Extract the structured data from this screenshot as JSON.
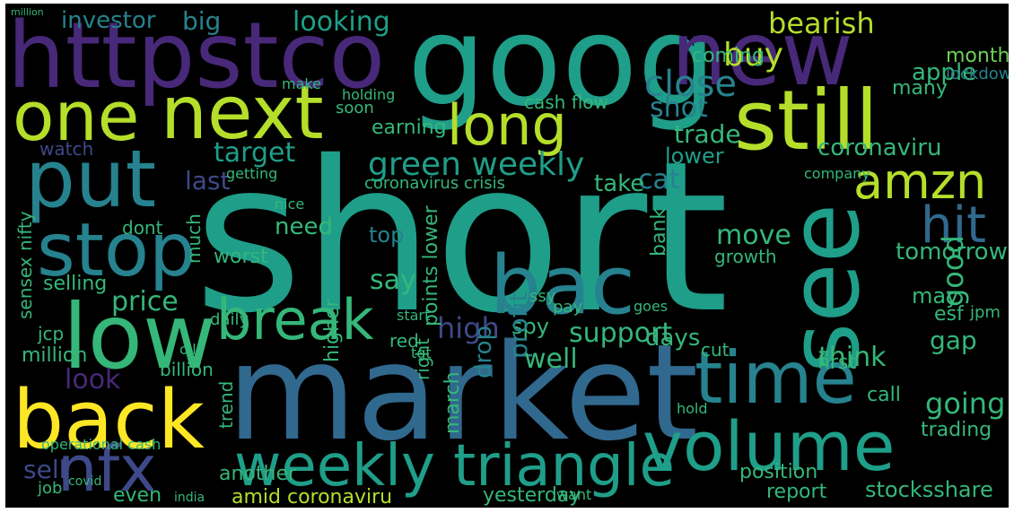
{
  "background": "#000000",
  "palette": {
    "yellow": "#fde725",
    "lime": "#b5de2b",
    "green": "#6ece58",
    "teal": "#35b779",
    "cyan": "#1f9e89",
    "blue": "#26828e",
    "steel": "#31688e",
    "indigo": "#3e4989",
    "purple": "#482878",
    "dark": "#440154"
  },
  "words": [
    {
      "text": "short",
      "color": "cyan"
    },
    {
      "text": "market",
      "color": "steel"
    },
    {
      "text": "goog",
      "color": "cyan"
    },
    {
      "text": "httpstco",
      "color": "purple"
    },
    {
      "text": "new",
      "color": "purple"
    },
    {
      "text": "one",
      "color": "lime"
    },
    {
      "text": "next",
      "color": "lime"
    },
    {
      "text": "long",
      "color": "lime"
    },
    {
      "text": "still",
      "color": "lime"
    },
    {
      "text": "put",
      "color": "blue"
    },
    {
      "text": "low",
      "color": "teal"
    },
    {
      "text": "back",
      "color": "yellow"
    },
    {
      "text": "stop",
      "color": "blue"
    },
    {
      "text": "see",
      "color": "cyan"
    },
    {
      "text": "bac",
      "color": "blue"
    },
    {
      "text": "time",
      "color": "blue"
    },
    {
      "text": "volume",
      "color": "cyan"
    },
    {
      "text": "weekly triangle",
      "color": "cyan"
    },
    {
      "text": "nfx",
      "color": "indigo"
    },
    {
      "text": "break",
      "color": "teal"
    },
    {
      "text": "amzn",
      "color": "lime"
    },
    {
      "text": "hit",
      "color": "steel"
    },
    {
      "text": "bearish",
      "color": "lime"
    },
    {
      "text": "green weekly",
      "color": "cyan"
    },
    {
      "text": "target",
      "color": "cyan"
    },
    {
      "text": "close",
      "color": "blue"
    },
    {
      "text": "shot",
      "color": "blue"
    },
    {
      "text": "buy",
      "color": "lime"
    },
    {
      "text": "coronaviru",
      "color": "teal"
    },
    {
      "text": "investor",
      "color": "blue"
    },
    {
      "text": "big",
      "color": "blue"
    },
    {
      "text": "looking",
      "color": "cyan"
    },
    {
      "text": "month",
      "color": "green"
    },
    {
      "text": "apple",
      "color": "teal"
    },
    {
      "text": "coming",
      "color": "teal"
    },
    {
      "text": "lockdown",
      "color": "blue"
    },
    {
      "text": "trade",
      "color": "teal"
    },
    {
      "text": "lower",
      "color": "cyan"
    },
    {
      "text": "earning",
      "color": "teal"
    },
    {
      "text": "cat",
      "color": "blue"
    },
    {
      "text": "watch",
      "color": "indigo"
    },
    {
      "text": "last",
      "color": "indigo"
    },
    {
      "text": "price",
      "color": "teal"
    },
    {
      "text": "sell",
      "color": "indigo"
    },
    {
      "text": "look",
      "color": "purple"
    },
    {
      "text": "high",
      "color": "indigo"
    },
    {
      "text": "spy",
      "color": "teal"
    },
    {
      "text": "support",
      "color": "teal"
    },
    {
      "text": "move",
      "color": "teal"
    },
    {
      "text": "growth",
      "color": "teal"
    },
    {
      "text": "say",
      "color": "teal"
    },
    {
      "text": "top",
      "color": "blue"
    },
    {
      "text": "profit",
      "color": "blue"
    },
    {
      "text": "drop",
      "color": "blue"
    },
    {
      "text": "march",
      "color": "teal"
    },
    {
      "text": "days",
      "color": "teal"
    },
    {
      "text": "think",
      "color": "teal"
    },
    {
      "text": "going",
      "color": "teal"
    },
    {
      "text": "good",
      "color": "teal"
    },
    {
      "text": "tomorrow",
      "color": "teal"
    },
    {
      "text": "gap",
      "color": "teal"
    },
    {
      "text": "position",
      "color": "teal"
    },
    {
      "text": "trading",
      "color": "teal"
    },
    {
      "text": "call",
      "color": "teal"
    },
    {
      "text": "stocksshare",
      "color": "teal"
    },
    {
      "text": "report",
      "color": "teal"
    },
    {
      "text": "yesterday",
      "color": "teal"
    },
    {
      "text": "amid coronaviru",
      "color": "lime"
    },
    {
      "text": "even",
      "color": "teal"
    },
    {
      "text": "another",
      "color": "teal"
    },
    {
      "text": "jcp",
      "color": "teal"
    },
    {
      "text": "million",
      "color": "teal"
    },
    {
      "text": "selling",
      "color": "teal"
    },
    {
      "text": "need",
      "color": "teal"
    },
    {
      "text": "dont",
      "color": "teal"
    },
    {
      "text": "worst",
      "color": "teal"
    },
    {
      "text": "much",
      "color": "teal"
    },
    {
      "text": "sensex nifty",
      "color": "teal"
    },
    {
      "text": "higher",
      "color": "teal"
    },
    {
      "text": "right",
      "color": "teal"
    },
    {
      "text": "well",
      "color": "teal"
    },
    {
      "text": "red",
      "color": "teal"
    },
    {
      "text": "tgt",
      "color": "teal"
    },
    {
      "text": "take",
      "color": "teal"
    },
    {
      "text": "bank",
      "color": "teal"
    },
    {
      "text": "ssy",
      "color": "teal"
    },
    {
      "text": "pay",
      "color": "teal"
    },
    {
      "text": "first",
      "color": "teal"
    },
    {
      "text": "cut",
      "color": "teal"
    },
    {
      "text": "may",
      "color": "teal"
    },
    {
      "text": "esf",
      "color": "teal"
    },
    {
      "text": "jpm",
      "color": "teal"
    },
    {
      "text": "company",
      "color": "teal"
    },
    {
      "text": "holding",
      "color": "teal"
    },
    {
      "text": "soon",
      "color": "teal"
    },
    {
      "text": "cash flow",
      "color": "teal"
    },
    {
      "text": "points lower",
      "color": "teal"
    },
    {
      "text": "trend",
      "color": "teal"
    },
    {
      "text": "oil",
      "color": "teal"
    },
    {
      "text": "billion",
      "color": "teal"
    },
    {
      "text": "job",
      "color": "teal"
    },
    {
      "text": "operational cash",
      "color": "teal"
    },
    {
      "text": "many",
      "color": "teal"
    },
    {
      "text": "daily",
      "color": "teal"
    },
    {
      "text": "nice",
      "color": "teal"
    },
    {
      "text": "coronavirus crisis",
      "color": "teal"
    },
    {
      "text": "goes",
      "color": "teal"
    },
    {
      "text": "hold",
      "color": "teal"
    },
    {
      "text": "start",
      "color": "teal"
    },
    {
      "text": "want",
      "color": "teal"
    },
    {
      "text": "make",
      "color": "teal"
    },
    {
      "text": "getting",
      "color": "teal"
    },
    {
      "text": "india",
      "color": "teal"
    },
    {
      "text": "covid",
      "color": "teal"
    }
  ]
}
